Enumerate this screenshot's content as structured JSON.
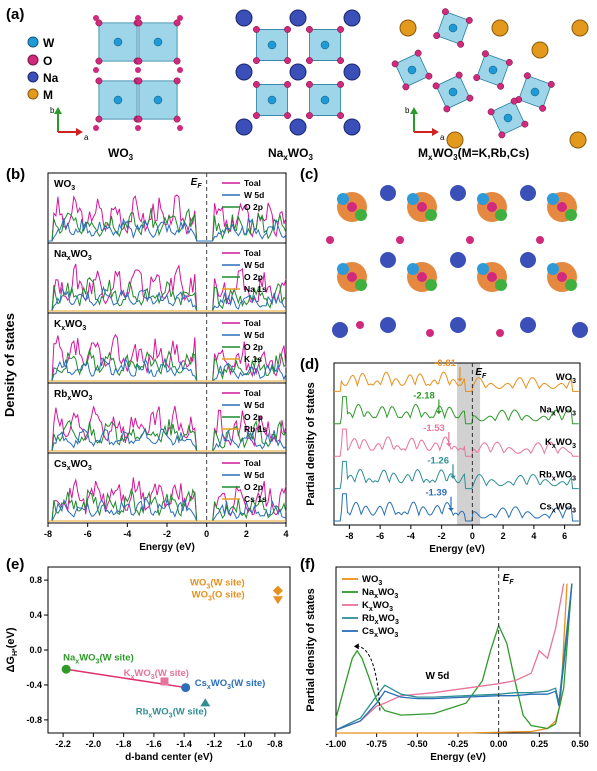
{
  "panels": {
    "a": "(a)",
    "b": "(b)",
    "c": "(c)",
    "d": "(d)",
    "e": "(e)",
    "f": "(f)"
  },
  "panel_a": {
    "legend": [
      {
        "label": "W",
        "color": "#1f9ad6"
      },
      {
        "label": "O",
        "color": "#d12a7d"
      },
      {
        "label": "Na",
        "color": "#3b4fb8"
      },
      {
        "label": "M",
        "color": "#e39a1c"
      }
    ],
    "structures": [
      {
        "base": "WO",
        "sub": "3",
        "tail": ""
      },
      {
        "base": "Na",
        "sub": "x",
        "mid": "WO",
        "sub2": "3",
        "tail": ""
      },
      {
        "base": "M",
        "sub": "x",
        "mid": "WO",
        "sub2": "3",
        "tail": "(M=K,Rb,Cs)"
      }
    ],
    "axis_b": "b",
    "axis_a": "a"
  },
  "panel_b": {
    "ylabel": "Density of states",
    "xlabel": "Energy (eV)",
    "ef_label": "E",
    "ef_sub": "F",
    "xticks": [
      "-8",
      "-6",
      "-4",
      "-2",
      "0",
      "2",
      "4"
    ],
    "rows": [
      {
        "name_base": "WO",
        "name_sub": "3",
        "name_x": "",
        "legend": [
          "Toal",
          "W 5d",
          "O 2p"
        ]
      },
      {
        "name_base": "Na",
        "name_x": "x",
        "name_mid": "WO",
        "name_sub": "3",
        "legend": [
          "Toal",
          "W 5d",
          "O 2p",
          "Na 1s"
        ]
      },
      {
        "name_base": "K",
        "name_x": "x",
        "name_mid": "WO",
        "name_sub": "3",
        "legend": [
          "Toal",
          "W 5d",
          "O 2p",
          "K 1s"
        ]
      },
      {
        "name_base": "Rb",
        "name_x": "x",
        "name_mid": "WO",
        "name_sub": "3",
        "legend": [
          "Toal",
          "W 5d",
          "O 2p",
          "Rb 1s"
        ]
      },
      {
        "name_base": "Cs",
        "name_x": "x",
        "name_mid": "WO",
        "name_sub": "3",
        "legend": [
          "Toal",
          "W 5d",
          "O 2p",
          "Cs 1s"
        ]
      }
    ],
    "colors": {
      "total": "#d4179c",
      "w5d": "#2a6fb8",
      "o2p": "#1f8a2a",
      "m1s": "#e8a020"
    }
  },
  "panel_d": {
    "ylabel": "Partial density of states",
    "xlabel": "Energy (eV)",
    "ef_label": "E",
    "ef_sub": "F",
    "xticks": [
      "-8",
      "-6",
      "-4",
      "-2",
      "0",
      "2",
      "4",
      "6"
    ],
    "curves": [
      {
        "name": "WO3",
        "label": "WO",
        "sub": "3",
        "color": "#e8901c",
        "center": "-0.81"
      },
      {
        "name": "NaxWO3",
        "label": "Na",
        "x": "x",
        "mid": "WO",
        "sub": "3",
        "color": "#2e9a2a",
        "center": "-2.18"
      },
      {
        "name": "KxWO3",
        "label": "K",
        "x": "x",
        "mid": "WO",
        "sub": "3",
        "color": "#e8749a",
        "center": "-1.53"
      },
      {
        "name": "RbxWO3",
        "label": "Rb",
        "x": "x",
        "mid": "WO",
        "sub": "3",
        "color": "#2f8f95",
        "center": "-1.26"
      },
      {
        "name": "CsxWO3",
        "label": "Cs",
        "x": "x",
        "mid": "WO",
        "sub": "3",
        "color": "#2a6fb8",
        "center": "-1.39"
      }
    ]
  },
  "chart_data": [
    {
      "type": "scatter",
      "panel": "e",
      "xlabel": "d-band center (eV)",
      "ylabel": "ΔG",
      "ylabel_sub": "H*",
      "ylabel_unit": "(eV)",
      "xlim": [
        -2.3,
        -0.7
      ],
      "ylim": [
        -0.95,
        0.95
      ],
      "xticks": [
        "-2.2",
        "-2.0",
        "-1.8",
        "-1.6",
        "-1.4",
        "-1.2",
        "-1.0",
        "-0.8"
      ],
      "yticks": [
        "0.8",
        "0.4",
        "0.0",
        "-0.4",
        "-0.8"
      ],
      "points": [
        {
          "label": "WO3(W site)",
          "lb": "WO",
          "ls": "3",
          "lt": "(W site)",
          "x": -0.78,
          "y": 0.68,
          "color": "#e8901c",
          "marker": "diamond"
        },
        {
          "label": "WO3(O site)",
          "lb": "WO",
          "ls": "3",
          "lt": "(O site)",
          "x": -0.78,
          "y": 0.57,
          "color": "#e8901c",
          "marker": "triangle-down"
        },
        {
          "label": "NaxWO3(W site)",
          "lb": "Na",
          "lx": "x",
          "lm": "WO",
          "ls": "3",
          "lt": "(W site)",
          "x": -2.18,
          "y": -0.22,
          "color": "#2e9a2a",
          "marker": "circle"
        },
        {
          "label": "KxWO3(W site)",
          "lb": "K",
          "lx": "x",
          "lm": "WO",
          "ls": "3",
          "lt": "(W site)",
          "x": -1.53,
          "y": -0.36,
          "color": "#e8749a",
          "marker": "square"
        },
        {
          "label": "CsxWO3(W site)",
          "lb": "Cs",
          "lx": "x",
          "lm": "WO",
          "ls": "3",
          "lt": "(W site)",
          "x": -1.39,
          "y": -0.43,
          "color": "#2a6fb8",
          "marker": "circle"
        },
        {
          "label": "RbxWO3(W site)",
          "lb": "Rb",
          "lx": "x",
          "lm": "WO",
          "ls": "3",
          "lt": "(W site)",
          "x": -1.26,
          "y": -0.6,
          "color": "#2f8f95",
          "marker": "triangle-up"
        }
      ],
      "fit_line": {
        "x": [
          -2.18,
          -1.39
        ],
        "y": [
          -0.22,
          -0.43
        ],
        "color": "#e0306a"
      }
    },
    {
      "type": "line",
      "panel": "f",
      "xlabel": "Energy (eV)",
      "ylabel": "Partial density of states",
      "xlim": [
        -1.0,
        0.5
      ],
      "xticks": [
        "-1.00",
        "-0.75",
        "-0.50",
        "-0.25",
        "0.00",
        "0.25",
        "0.50"
      ],
      "ef_label": "E",
      "ef_sub": "F",
      "annotation": "W 5d",
      "legend": [
        {
          "lb": "WO",
          "ls": "3",
          "color": "#e8901c"
        },
        {
          "lb": "Na",
          "lx": "x",
          "lm": "WO",
          "ls": "3",
          "color": "#2e9a2a"
        },
        {
          "lb": "K",
          "lx": "x",
          "lm": "WO",
          "ls": "3",
          "color": "#e8749a"
        },
        {
          "lb": "Rb",
          "lx": "x",
          "lm": "WO",
          "ls": "3",
          "color": "#2f8f95"
        },
        {
          "lb": "Cs",
          "lx": "x",
          "lm": "WO",
          "ls": "3",
          "color": "#2a6fb8"
        }
      ],
      "series": [
        {
          "name": "WO3",
          "color": "#e8901c",
          "x": [
            -1.0,
            -0.6,
            -0.2,
            0.2,
            0.3,
            0.35,
            0.38,
            0.4,
            0.42
          ],
          "y": [
            0.0,
            0.0,
            0.0,
            0.01,
            0.03,
            0.08,
            0.2,
            0.6,
            1.0
          ]
        },
        {
          "name": "NaxWO3",
          "color": "#2e9a2a",
          "x": [
            -1.0,
            -0.95,
            -0.9,
            -0.87,
            -0.84,
            -0.8,
            -0.75,
            -0.7,
            -0.6,
            -0.4,
            -0.2,
            -0.1,
            -0.05,
            0.0,
            0.05,
            0.1,
            0.15,
            0.2,
            0.3,
            0.35,
            0.4,
            0.45
          ],
          "y": [
            0.1,
            0.3,
            0.5,
            0.55,
            0.5,
            0.38,
            0.22,
            0.15,
            0.12,
            0.13,
            0.2,
            0.35,
            0.55,
            0.72,
            0.6,
            0.35,
            0.12,
            0.05,
            0.03,
            0.06,
            0.3,
            1.0
          ]
        },
        {
          "name": "KxWO3",
          "color": "#e8749a",
          "x": [
            -1.0,
            -0.85,
            -0.75,
            -0.7,
            -0.6,
            -0.4,
            -0.2,
            0.0,
            0.1,
            0.2,
            0.25,
            0.3,
            0.35,
            0.4
          ],
          "y": [
            0.02,
            0.08,
            0.18,
            0.2,
            0.25,
            0.27,
            0.3,
            0.33,
            0.35,
            0.4,
            0.55,
            0.5,
            0.7,
            1.0
          ]
        },
        {
          "name": "RbxWO3",
          "color": "#2f8f95",
          "x": [
            -1.0,
            -0.85,
            -0.75,
            -0.7,
            -0.6,
            -0.5,
            -0.4,
            -0.2,
            0.0,
            0.1,
            0.2,
            0.3,
            0.35,
            0.37,
            0.4,
            0.45
          ],
          "y": [
            0.02,
            0.1,
            0.25,
            0.32,
            0.26,
            0.24,
            0.24,
            0.25,
            0.26,
            0.27,
            0.27,
            0.28,
            0.3,
            0.2,
            0.5,
            1.0
          ]
        },
        {
          "name": "CsxWO3",
          "color": "#2a6fb8",
          "x": [
            -1.0,
            -0.85,
            -0.75,
            -0.7,
            -0.6,
            -0.5,
            -0.4,
            -0.2,
            0.0,
            0.1,
            0.2,
            0.3,
            0.35,
            0.37,
            0.4,
            0.45
          ],
          "y": [
            0.02,
            0.08,
            0.2,
            0.28,
            0.24,
            0.23,
            0.23,
            0.24,
            0.25,
            0.25,
            0.26,
            0.26,
            0.28,
            0.18,
            0.45,
            1.0
          ]
        }
      ]
    }
  ]
}
